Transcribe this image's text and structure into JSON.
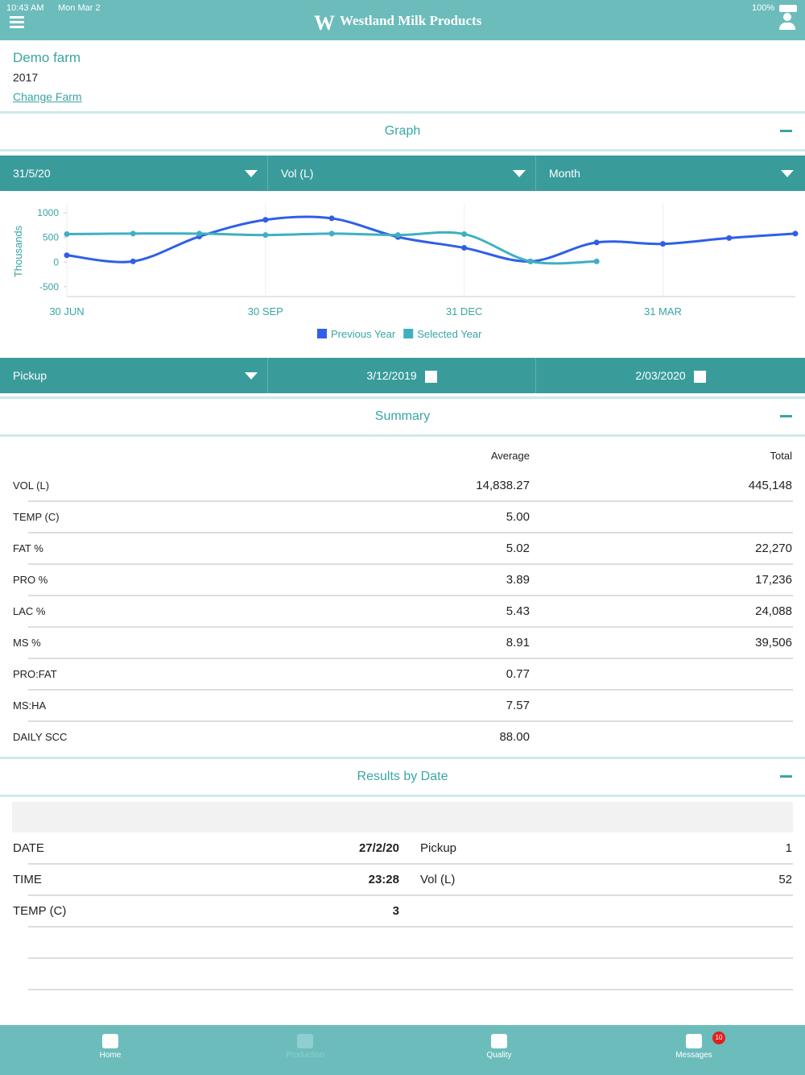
{
  "status_bar": {
    "time": "10:43 AM",
    "date": "Mon Mar 2",
    "battery": "100%"
  },
  "header": {
    "title": "Westland Milk Products"
  },
  "farm": {
    "name": "Demo farm",
    "year": "2017",
    "change_link": "Change Farm"
  },
  "graph_section": {
    "title": "Graph",
    "filters": [
      "31/5/20",
      "Vol (L)",
      "Month"
    ]
  },
  "chart_data": {
    "type": "line",
    "y_label": "Thousands",
    "categories": [
      "30 JUN",
      null,
      null,
      "30 SEP",
      null,
      null,
      "31 DEC",
      null,
      null,
      "31 MAR",
      null,
      null
    ],
    "series": [
      {
        "name": "Previous Year",
        "color": "#2f5fe8",
        "values": [
          140,
          15,
          520,
          860,
          890,
          510,
          290,
          15,
          400,
          370,
          490,
          580
        ]
      },
      {
        "name": "Selected Year",
        "color": "#3fb0c0",
        "values": [
          570,
          580,
          580,
          550,
          580,
          550,
          570,
          15,
          15,
          null,
          null,
          null
        ]
      }
    ],
    "ylim": [
      -700,
      1200
    ],
    "yticks": [
      -500,
      0,
      500,
      1000
    ],
    "legend": "bottom"
  },
  "pickup_filters": {
    "type": "Pickup",
    "from": "3/12/2019",
    "to": "2/03/2020"
  },
  "summary": {
    "title": "Summary",
    "columns": [
      "Average",
      "Total"
    ],
    "rows": [
      {
        "label": "VOL (L)",
        "average": "14,838.27",
        "total": "445,148"
      },
      {
        "label": "TEMP (C)",
        "average": "5.00"
      },
      {
        "label": "FAT %",
        "average": "5.02",
        "total": "22,270"
      },
      {
        "label": "PRO %",
        "average": "3.89",
        "total": "17,236"
      },
      {
        "label": "LAC %",
        "average": "5.43",
        "total": "24,088"
      },
      {
        "label": "MS %",
        "average": "8.91",
        "total": "39,506"
      },
      {
        "label": "PRO:FAT",
        "average": "0.77"
      },
      {
        "label": "MS:HA",
        "average": "7.57"
      },
      {
        "label": "DAILY SCC",
        "average": "88.00"
      }
    ]
  },
  "results": {
    "title": "Results by Date",
    "rows": [
      [
        "DATE",
        "27/2/20",
        "Pickup",
        "1"
      ],
      [
        "TIME",
        "23:28",
        "Vol (L)",
        "52"
      ],
      [
        "TEMP (C)",
        "3"
      ]
    ]
  },
  "tab_bar": {
    "tabs": [
      "Home",
      "Production",
      "Quality",
      "Messages"
    ],
    "badge": "10"
  }
}
